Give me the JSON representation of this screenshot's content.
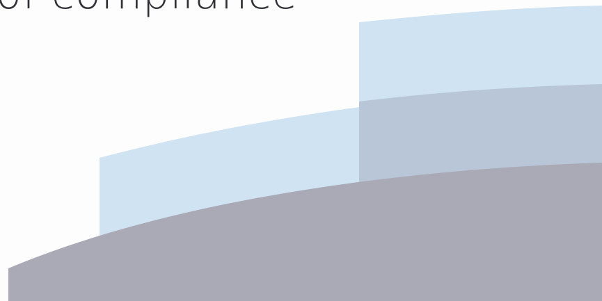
{
  "headline": {
    "text": "of compliance"
  },
  "colors": {
    "background": "#fdfdfe",
    "light_blue": "#cfe3f3",
    "overlap_blue_gray": "#b9c6d7",
    "gray_purple": "#aaa9b6",
    "text": "#2f3136"
  }
}
